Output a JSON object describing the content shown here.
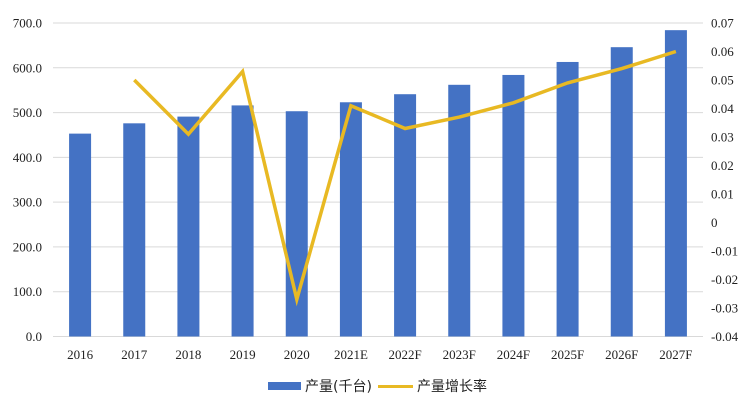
{
  "chart_data": {
    "type": "bar+line",
    "title": "",
    "categories": [
      "2016",
      "2017",
      "2018",
      "2019",
      "2020",
      "2021E",
      "2022F",
      "2023F",
      "2024F",
      "2025F",
      "2026F",
      "2027F"
    ],
    "series": [
      {
        "name": "产量(千台)",
        "type": "bar",
        "axis": "left",
        "color": "#4472C4",
        "values": [
          453,
          476,
          491,
          516,
          503,
          523,
          541,
          562,
          584,
          613,
          646,
          684
        ]
      },
      {
        "name": "产量增长率",
        "type": "line",
        "axis": "right",
        "color": "#E8B923",
        "values": [
          null,
          0.05,
          0.031,
          0.053,
          -0.027,
          0.041,
          0.033,
          0.037,
          0.042,
          0.049,
          0.054,
          0.06
        ]
      }
    ],
    "y_left": {
      "label": "",
      "ylim": [
        0,
        700
      ],
      "ticks": [
        "0.0",
        "100.0",
        "200.0",
        "300.0",
        "400.0",
        "500.0",
        "600.0",
        "700.0"
      ]
    },
    "y_right": {
      "label": "",
      "ylim": [
        -0.04,
        0.07
      ],
      "ticks": [
        "-0.04",
        "-0.03",
        "-0.02",
        "-0.01",
        "0",
        "0.01",
        "0.02",
        "0.03",
        "0.04",
        "0.05",
        "0.06",
        "0.07"
      ]
    },
    "xlabel": "",
    "grid": true,
    "legend_position": "bottom"
  },
  "legend": {
    "items": [
      {
        "label": "产量(千台)",
        "color": "#4472C4",
        "kind": "bar"
      },
      {
        "label": "产量增长率",
        "color": "#E8B923",
        "kind": "line"
      }
    ]
  }
}
